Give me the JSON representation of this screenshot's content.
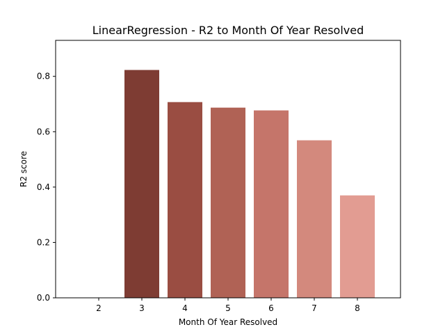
{
  "chart_data": {
    "type": "bar",
    "title": "LinearRegression - R2 to Month Of Year Resolved",
    "xlabel": "Month Of Year Resolved",
    "ylabel": "R2 score",
    "categories": [
      "2",
      "3",
      "4",
      "5",
      "6",
      "7",
      "8"
    ],
    "values": [
      0.0,
      0.823,
      0.707,
      0.687,
      0.677,
      0.569,
      0.37
    ],
    "colors": [
      "#ffffff",
      "#7e3c33",
      "#9a4d42",
      "#b06255",
      "#c5756a",
      "#d3897d",
      "#e29c92"
    ],
    "ylim": [
      0,
      0.93
    ],
    "yticks": [
      0.0,
      0.2,
      0.4,
      0.6,
      0.8
    ],
    "ytick_labels": [
      "0.0",
      "0.2",
      "0.4",
      "0.6",
      "0.8"
    ],
    "grid": false,
    "legend": "none"
  }
}
